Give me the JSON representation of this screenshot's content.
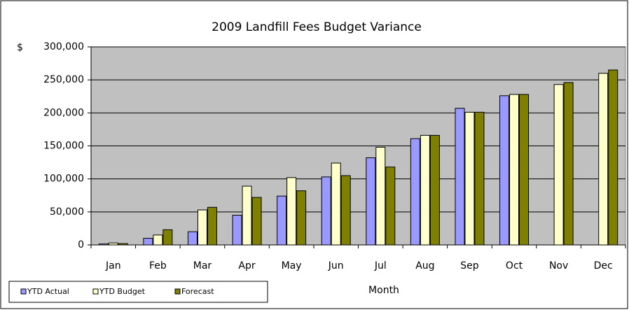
{
  "chart_data": {
    "type": "bar",
    "title": "2009 Landfill Fees Budget Variance",
    "y_label": "$",
    "x_label": "Month",
    "categories": [
      "Jan",
      "Feb",
      "Mar",
      "Apr",
      "May",
      "Jun",
      "Jul",
      "Aug",
      "Sep",
      "Oct",
      "Nov",
      "Dec"
    ],
    "series": [
      {
        "name": "YTD Actual",
        "color": "#9999ff",
        "values": [
          1500,
          10000,
          20000,
          45000,
          74000,
          103000,
          132000,
          161000,
          207000,
          226000,
          null,
          null
        ]
      },
      {
        "name": "YTD Budget",
        "color": "#ffffcc",
        "values": [
          3000,
          15000,
          53000,
          89000,
          102000,
          124000,
          148000,
          166000,
          201000,
          228000,
          243000,
          260000
        ]
      },
      {
        "name": "Forecast",
        "color": "#808000",
        "values": [
          2000,
          23000,
          57000,
          72000,
          82000,
          105000,
          118000,
          166000,
          201000,
          228000,
          246000,
          265000
        ]
      }
    ],
    "ylim": [
      0,
      300000
    ],
    "yticks": [
      0,
      {
        "value": 50000,
        "label": "50,000"
      },
      {
        "value": 100000,
        "label": "100,000"
      },
      {
        "value": 150000,
        "label": "150,000"
      },
      {
        "value": 200000,
        "label": "200,000"
      },
      {
        "value": 250000,
        "label": "250,000"
      },
      {
        "value": 300000,
        "label": "300,000"
      }
    ],
    "grid": true,
    "legend": "bottom-left"
  }
}
